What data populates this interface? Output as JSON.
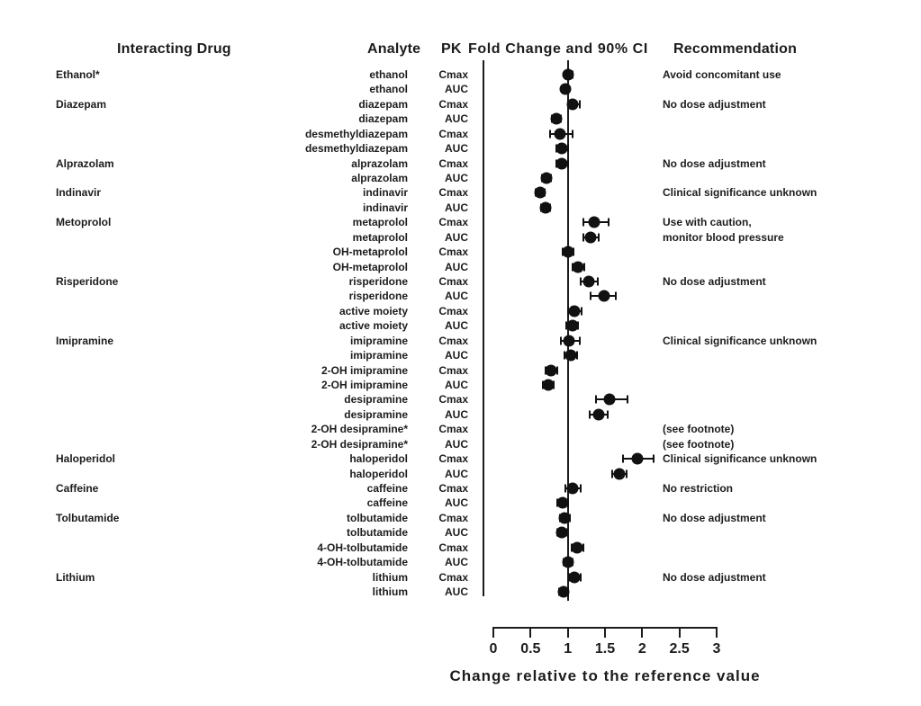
{
  "header": {
    "interacting_drug": "Interacting Drug",
    "analyte": "Analyte",
    "pk": "PK",
    "fold_change": "Fold Change and 90% CI",
    "recommendation": "Recommendation"
  },
  "chart_data": {
    "type": "forest",
    "x_axis": {
      "label": "Change relative to the reference value",
      "ticks": [
        0,
        0.5,
        1,
        1.5,
        2,
        2.5,
        3
      ],
      "tick_labels": [
        "0",
        "0.5",
        "1",
        "1.5",
        "2",
        "2.5",
        "3"
      ],
      "range": [
        0,
        3
      ],
      "reference_value": 1
    },
    "rows": [
      {
        "drug": "Ethanol*",
        "analyte": "ethanol",
        "pk": "Cmax",
        "value": 1.0,
        "lo": 0.95,
        "hi": 1.06,
        "recommendation": "Avoid concomitant use"
      },
      {
        "drug": "",
        "analyte": "ethanol",
        "pk": "AUC",
        "value": 0.97,
        "lo": 0.92,
        "hi": 1.02,
        "recommendation": ""
      },
      {
        "drug": "Diazepam",
        "analyte": "diazepam",
        "pk": "Cmax",
        "value": 1.07,
        "lo": 1.0,
        "hi": 1.16,
        "recommendation": "No dose adjustment"
      },
      {
        "drug": "",
        "analyte": "diazepam",
        "pk": "AUC",
        "value": 0.85,
        "lo": 0.79,
        "hi": 0.91,
        "recommendation": ""
      },
      {
        "drug": "",
        "analyte": "desmethyldiazepam",
        "pk": "Cmax",
        "value": 0.9,
        "lo": 0.76,
        "hi": 1.06,
        "recommendation": ""
      },
      {
        "drug": "",
        "analyte": "desmethyldiazepam",
        "pk": "AUC",
        "value": 0.92,
        "lo": 0.85,
        "hi": 1.0,
        "recommendation": ""
      },
      {
        "drug": "Alprazolam",
        "analyte": "alprazolam",
        "pk": "Cmax",
        "value": 0.92,
        "lo": 0.85,
        "hi": 1.01,
        "recommendation": "No dose adjustment"
      },
      {
        "drug": "",
        "analyte": "alprazolam",
        "pk": "AUC",
        "value": 0.71,
        "lo": 0.65,
        "hi": 0.77,
        "recommendation": ""
      },
      {
        "drug": "Indinavir",
        "analyte": "indinavir",
        "pk": "Cmax",
        "value": 0.63,
        "lo": 0.57,
        "hi": 0.69,
        "recommendation": "Clinical significance unknown"
      },
      {
        "drug": "",
        "analyte": "indinavir",
        "pk": "AUC",
        "value": 0.7,
        "lo": 0.64,
        "hi": 0.76,
        "recommendation": ""
      },
      {
        "drug": "Metoprolol",
        "analyte": "metaprolol",
        "pk": "Cmax",
        "value": 1.35,
        "lo": 1.21,
        "hi": 1.55,
        "recommendation": "Use with caution,"
      },
      {
        "drug": "",
        "analyte": "metaprolol",
        "pk": "AUC",
        "value": 1.31,
        "lo": 1.21,
        "hi": 1.41,
        "recommendation": "monitor blood pressure"
      },
      {
        "drug": "",
        "analyte": "OH-metaprolol",
        "pk": "Cmax",
        "value": 1.01,
        "lo": 0.93,
        "hi": 1.08,
        "recommendation": ""
      },
      {
        "drug": "",
        "analyte": "OH-metaprolol",
        "pk": "AUC",
        "value": 1.14,
        "lo": 1.06,
        "hi": 1.22,
        "recommendation": ""
      },
      {
        "drug": "Risperidone",
        "analyte": "risperidone",
        "pk": "Cmax",
        "value": 1.28,
        "lo": 1.17,
        "hi": 1.4,
        "recommendation": "No dose adjustment"
      },
      {
        "drug": "",
        "analyte": "risperidone",
        "pk": "AUC",
        "value": 1.49,
        "lo": 1.31,
        "hi": 1.65,
        "recommendation": ""
      },
      {
        "drug": "",
        "analyte": "active moiety",
        "pk": "Cmax",
        "value": 1.09,
        "lo": 1.01,
        "hi": 1.18,
        "recommendation": ""
      },
      {
        "drug": "",
        "analyte": "active moiety",
        "pk": "AUC",
        "value": 1.06,
        "lo": 0.98,
        "hi": 1.14,
        "recommendation": ""
      },
      {
        "drug": "Imipramine",
        "analyte": "imipramine",
        "pk": "Cmax",
        "value": 1.02,
        "lo": 0.91,
        "hi": 1.16,
        "recommendation": "Clinical significance unknown"
      },
      {
        "drug": "",
        "analyte": "imipramine",
        "pk": "AUC",
        "value": 1.04,
        "lo": 0.95,
        "hi": 1.13,
        "recommendation": ""
      },
      {
        "drug": "",
        "analyte": "2-OH imipramine",
        "pk": "Cmax",
        "value": 0.78,
        "lo": 0.7,
        "hi": 0.86,
        "recommendation": ""
      },
      {
        "drug": "",
        "analyte": "2-OH imipramine",
        "pk": "AUC",
        "value": 0.74,
        "lo": 0.67,
        "hi": 0.81,
        "recommendation": ""
      },
      {
        "drug": "",
        "analyte": "desipramine",
        "pk": "Cmax",
        "value": 1.56,
        "lo": 1.38,
        "hi": 1.8,
        "recommendation": ""
      },
      {
        "drug": "",
        "analyte": "desipramine",
        "pk": "AUC",
        "value": 1.41,
        "lo": 1.29,
        "hi": 1.54,
        "recommendation": ""
      },
      {
        "drug": "",
        "analyte": "2-OH desipramine*",
        "pk": "Cmax",
        "value": null,
        "lo": null,
        "hi": null,
        "recommendation": "(see footnote)"
      },
      {
        "drug": "",
        "analyte": "2-OH desipramine*",
        "pk": "AUC",
        "value": null,
        "lo": null,
        "hi": null,
        "recommendation": "(see footnote)"
      },
      {
        "drug": "Haloperidol",
        "analyte": "haloperidol",
        "pk": "Cmax",
        "value": 1.94,
        "lo": 1.74,
        "hi": 2.15,
        "recommendation": "Clinical significance unknown"
      },
      {
        "drug": "",
        "analyte": "haloperidol",
        "pk": "AUC",
        "value": 1.69,
        "lo": 1.6,
        "hi": 1.79,
        "recommendation": ""
      },
      {
        "drug": "Caffeine",
        "analyte": "caffeine",
        "pk": "Cmax",
        "value": 1.07,
        "lo": 0.97,
        "hi": 1.17,
        "recommendation": "No restriction"
      },
      {
        "drug": "",
        "analyte": "caffeine",
        "pk": "AUC",
        "value": 0.93,
        "lo": 0.86,
        "hi": 1.01,
        "recommendation": ""
      },
      {
        "drug": "Tolbutamide",
        "analyte": "tolbutamide",
        "pk": "Cmax",
        "value": 0.96,
        "lo": 0.9,
        "hi": 1.03,
        "recommendation": "No dose adjustment"
      },
      {
        "drug": "",
        "analyte": "tolbutamide",
        "pk": "AUC",
        "value": 0.92,
        "lo": 0.86,
        "hi": 0.98,
        "recommendation": ""
      },
      {
        "drug": "",
        "analyte": "4-OH-tolbutamide",
        "pk": "Cmax",
        "value": 1.13,
        "lo": 1.05,
        "hi": 1.21,
        "recommendation": ""
      },
      {
        "drug": "",
        "analyte": "4-OH-tolbutamide",
        "pk": "AUC",
        "value": 1.0,
        "lo": 0.94,
        "hi": 1.07,
        "recommendation": ""
      },
      {
        "drug": "Lithium",
        "analyte": "lithium",
        "pk": "Cmax",
        "value": 1.09,
        "lo": 1.02,
        "hi": 1.17,
        "recommendation": "No dose adjustment"
      },
      {
        "drug": "",
        "analyte": "lithium",
        "pk": "AUC",
        "value": 0.94,
        "lo": 0.88,
        "hi": 1.0,
        "recommendation": ""
      }
    ]
  },
  "colors": {
    "ink": "#1c1c1c",
    "background": "#ffffff"
  }
}
